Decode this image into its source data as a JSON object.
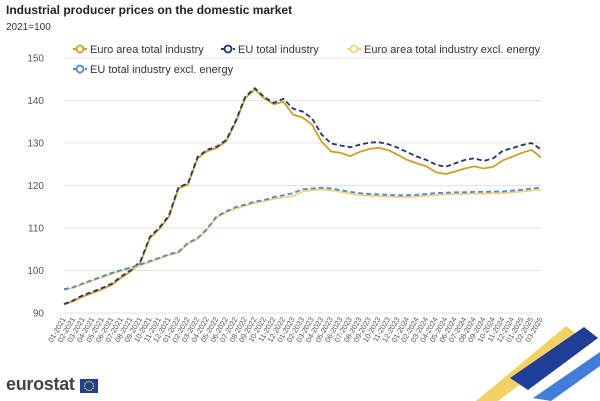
{
  "header": {
    "title": "Industrial producer prices on the domestic market",
    "unit": "2021=100"
  },
  "branding": {
    "logo_text": "eurostat"
  },
  "colors": {
    "euro_area": "#c9a227",
    "eu": "#26336e",
    "euro_area_excl": "#f2d27a",
    "eu_excl": "#4f86d6",
    "grid": "#e3e3e3"
  },
  "chart_data": {
    "type": "line",
    "title": "Industrial producer prices on the domestic market",
    "ylabel": "2021=100",
    "ylim": [
      90,
      150
    ],
    "yticks": [
      90,
      100,
      110,
      120,
      130,
      140,
      150
    ],
    "grid": true,
    "legend_placement": "top",
    "x": [
      "01-2021",
      "02-2021",
      "03-2021",
      "04-2021",
      "05-2021",
      "06-2021",
      "07-2021",
      "08-2021",
      "09-2021",
      "10-2021",
      "11-2021",
      "12-2021",
      "01-2022",
      "02-2022",
      "03-2022",
      "04-2022",
      "05-2022",
      "06-2022",
      "07-2022",
      "08-2022",
      "09-2022",
      "10-2022",
      "11-2022",
      "12-2022",
      "01-2023",
      "02-2023",
      "03-2023",
      "04-2023",
      "05-2023",
      "06-2023",
      "07-2023",
      "08-2023",
      "09-2023",
      "10-2023",
      "11-2023",
      "12-2023",
      "01-2024",
      "02-2024",
      "03-2024",
      "04-2024",
      "05-2024",
      "06-2024",
      "07-2024",
      "08-2024",
      "09-2024",
      "10-2024",
      "11-2024",
      "12-2024",
      "01-2025",
      "02-2025",
      "03-2025"
    ],
    "series": [
      {
        "name": "Euro area total industry",
        "color": "#c9a227",
        "dash": false,
        "values": [
          92.0,
          92.8,
          93.9,
          94.7,
          95.6,
          96.6,
          98.3,
          99.8,
          101.8,
          107.6,
          109.8,
          112.6,
          119.3,
          120.2,
          126.4,
          128.1,
          128.8,
          130.4,
          134.9,
          140.6,
          142.6,
          140.5,
          139.1,
          139.7,
          136.7,
          136.0,
          134.3,
          130.3,
          128.0,
          127.7,
          126.9,
          127.9,
          128.6,
          128.9,
          128.3,
          127.2,
          126.0,
          125.2,
          124.5,
          123.1,
          122.7,
          123.3,
          124.0,
          124.5,
          124.0,
          124.4,
          125.9,
          126.8,
          127.7,
          128.4,
          126.6
        ]
      },
      {
        "name": "EU total industry",
        "color": "#26336e",
        "dash": true,
        "values": [
          92.1,
          93.0,
          94.2,
          95.0,
          95.9,
          96.9,
          98.6,
          100.1,
          102.1,
          107.9,
          110.1,
          112.9,
          119.6,
          120.5,
          126.7,
          128.4,
          129.1,
          130.7,
          135.2,
          140.9,
          142.9,
          140.8,
          139.4,
          140.4,
          138.1,
          137.4,
          135.8,
          132.0,
          129.9,
          129.4,
          129.0,
          129.6,
          130.1,
          130.2,
          129.7,
          128.9,
          127.8,
          126.8,
          126.0,
          124.9,
          124.4,
          125.2,
          126.0,
          126.4,
          125.8,
          126.4,
          128.2,
          128.8,
          129.5,
          130.0,
          128.5
        ]
      },
      {
        "name": "Euro area total industry excl. energy",
        "color": "#f2d27a",
        "dash": false,
        "values": [
          95.4,
          95.9,
          96.8,
          97.6,
          98.4,
          99.2,
          99.9,
          100.5,
          101.2,
          102.0,
          102.8,
          103.6,
          104.2,
          106.3,
          107.4,
          109.6,
          112.5,
          113.7,
          114.6,
          115.2,
          115.9,
          116.3,
          116.9,
          117.2,
          117.5,
          118.6,
          118.9,
          119.1,
          118.9,
          118.5,
          118.1,
          117.8,
          117.6,
          117.5,
          117.4,
          117.3,
          117.3,
          117.4,
          117.6,
          117.8,
          117.9,
          118.0,
          118.0,
          118.1,
          118.1,
          118.2,
          118.2,
          118.4,
          118.6,
          118.8,
          119.1
        ]
      },
      {
        "name": "EU total industry excl. energy",
        "color": "#4f86d6",
        "dash": true,
        "values": [
          95.6,
          96.1,
          97.0,
          97.8,
          98.6,
          99.4,
          100.1,
          100.7,
          101.4,
          102.2,
          103.0,
          103.8,
          104.4,
          106.5,
          107.6,
          109.8,
          112.7,
          113.9,
          114.9,
          115.5,
          116.2,
          116.6,
          117.3,
          117.7,
          118.2,
          119.1,
          119.3,
          119.5,
          119.3,
          118.9,
          118.5,
          118.2,
          118.0,
          117.9,
          117.8,
          117.7,
          117.7,
          117.8,
          118.0,
          118.2,
          118.3,
          118.4,
          118.4,
          118.5,
          118.5,
          118.6,
          118.6,
          118.8,
          119.0,
          119.3,
          119.5
        ]
      }
    ]
  }
}
